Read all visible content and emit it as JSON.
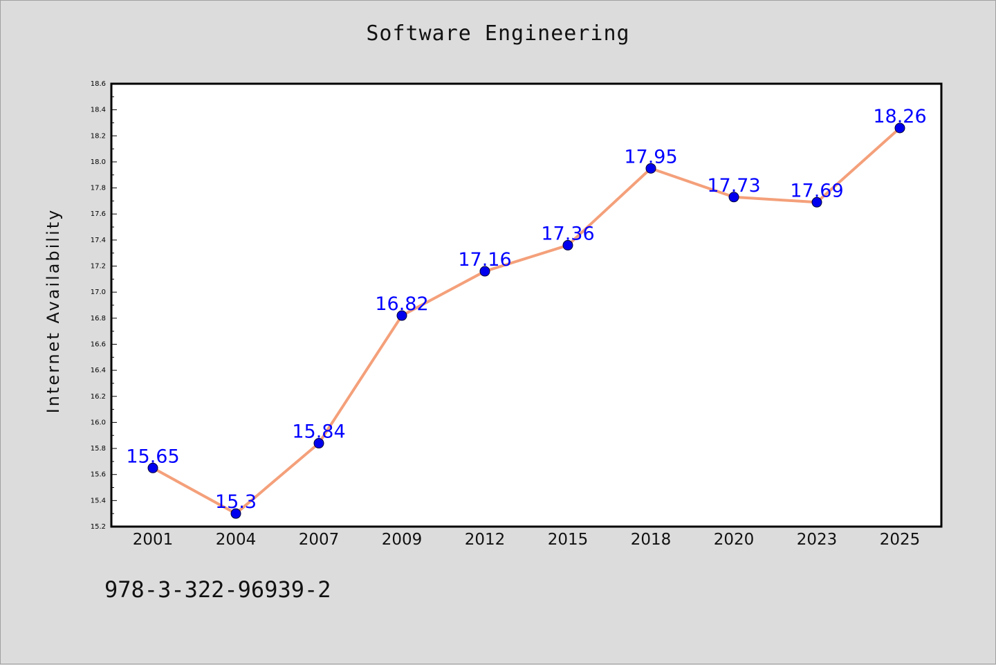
{
  "chart_data": {
    "type": "line",
    "title": "Software Engineering",
    "xlabel": "",
    "ylabel": "Internet Availability",
    "categories": [
      "2001",
      "2004",
      "2007",
      "2009",
      "2012",
      "2015",
      "2018",
      "2020",
      "2023",
      "2025"
    ],
    "series": [
      {
        "values": [
          15.65,
          15.3,
          15.84,
          16.82,
          17.16,
          17.36,
          17.95,
          17.73,
          17.69,
          18.26
        ]
      }
    ],
    "data_labels": [
      "15.65",
      "15.3",
      "15.84",
      "16.82",
      "17.16",
      "17.36",
      "17.95",
      "17.73",
      "17.69",
      "18.26"
    ],
    "ylim": [
      15.2,
      18.6
    ],
    "yticks": [
      "15.2",
      "15.4",
      "15.6",
      "15.8",
      "16.0",
      "16.2",
      "16.4",
      "16.6",
      "16.8",
      "17.0",
      "17.2",
      "17.4",
      "17.6",
      "17.8",
      "18.0",
      "18.2",
      "18.4",
      "18.6"
    ],
    "grid": false,
    "legend": "none",
    "colors": {
      "line": "#f4a07a",
      "marker": "#0000ee",
      "label": "#0000ff",
      "background": "#dcdcdc",
      "plot_bg": "#ffffff"
    }
  },
  "footnote": "978-3-322-96939-2"
}
